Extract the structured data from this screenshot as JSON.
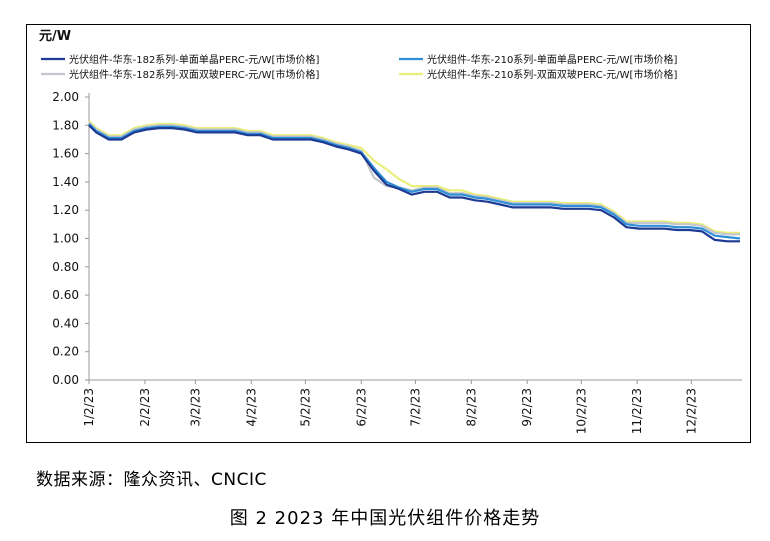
{
  "source_note": "数据来源：隆众资讯、CNCIC",
  "figure_caption": "图 2  2023 年中国光伏组件价格走势",
  "chart_data": {
    "type": "line",
    "title": "",
    "ylabel": "元/W",
    "xlabel": "",
    "ylim": [
      0,
      2
    ],
    "y_ticks": [
      "0.00",
      "0.20",
      "0.40",
      "0.60",
      "0.80",
      "1.00",
      "1.20",
      "1.40",
      "1.60",
      "1.80",
      "2.00"
    ],
    "x_tick_labels": [
      "1/2/23",
      "2/2/23",
      "3/2/23",
      "4/2/23",
      "5/2/23",
      "6/2/23",
      "7/2/23",
      "8/2/23",
      "9/2/23",
      "10/2/23",
      "11/2/23",
      "12/2/23"
    ],
    "grid": false,
    "legend_position": "top",
    "x": [
      "2023-01-02",
      "2023-01-06",
      "2023-01-13",
      "2023-01-20",
      "2023-01-27",
      "2023-02-03",
      "2023-02-10",
      "2023-02-17",
      "2023-02-24",
      "2023-03-03",
      "2023-03-10",
      "2023-03-17",
      "2023-03-24",
      "2023-03-31",
      "2023-04-07",
      "2023-04-14",
      "2023-04-21",
      "2023-04-28",
      "2023-05-05",
      "2023-05-12",
      "2023-05-19",
      "2023-05-26",
      "2023-06-02",
      "2023-06-09",
      "2023-06-16",
      "2023-06-23",
      "2023-06-30",
      "2023-07-07",
      "2023-07-14",
      "2023-07-21",
      "2023-07-28",
      "2023-08-04",
      "2023-08-11",
      "2023-08-18",
      "2023-08-25",
      "2023-09-01",
      "2023-09-08",
      "2023-09-15",
      "2023-09-22",
      "2023-09-29",
      "2023-10-06",
      "2023-10-13",
      "2023-10-20",
      "2023-10-27",
      "2023-11-03",
      "2023-11-10",
      "2023-11-17",
      "2023-11-24",
      "2023-12-01",
      "2023-12-08",
      "2023-12-15",
      "2023-12-22",
      "2023-12-29"
    ],
    "series": [
      {
        "name": "光伏组件-华东-182系列-单面单晶PERC-元/W[市场价格]",
        "color": "#1f3a93",
        "values": [
          1.8,
          1.75,
          1.7,
          1.7,
          1.75,
          1.77,
          1.78,
          1.78,
          1.77,
          1.75,
          1.75,
          1.75,
          1.75,
          1.73,
          1.73,
          1.7,
          1.7,
          1.7,
          1.7,
          1.68,
          1.65,
          1.63,
          1.6,
          1.48,
          1.38,
          1.35,
          1.31,
          1.33,
          1.33,
          1.29,
          1.29,
          1.27,
          1.26,
          1.24,
          1.22,
          1.22,
          1.22,
          1.22,
          1.21,
          1.21,
          1.21,
          1.2,
          1.15,
          1.08,
          1.07,
          1.07,
          1.07,
          1.06,
          1.06,
          1.05,
          0.99,
          0.98,
          0.98
        ]
      },
      {
        "name": "光伏组件-华东-210系列-单面单晶PERC-元/W[市场价格]",
        "color": "#2e8fd6",
        "values": [
          1.81,
          1.76,
          1.71,
          1.71,
          1.76,
          1.78,
          1.79,
          1.79,
          1.78,
          1.76,
          1.76,
          1.76,
          1.76,
          1.74,
          1.74,
          1.71,
          1.71,
          1.71,
          1.71,
          1.69,
          1.66,
          1.64,
          1.61,
          1.5,
          1.4,
          1.36,
          1.33,
          1.35,
          1.35,
          1.31,
          1.31,
          1.29,
          1.28,
          1.26,
          1.24,
          1.24,
          1.24,
          1.24,
          1.23,
          1.23,
          1.23,
          1.22,
          1.17,
          1.1,
          1.09,
          1.09,
          1.09,
          1.08,
          1.08,
          1.07,
          1.02,
          1.01,
          1.0
        ]
      },
      {
        "name": "光伏组件-华东-182系列-双面双玻PERC-元/W[市场价格]",
        "color": "#c3c6cc",
        "values": [
          1.82,
          1.77,
          1.72,
          1.72,
          1.77,
          1.79,
          1.8,
          1.8,
          1.79,
          1.77,
          1.77,
          1.77,
          1.77,
          1.75,
          1.75,
          1.72,
          1.72,
          1.72,
          1.72,
          1.7,
          1.67,
          1.65,
          1.62,
          1.43,
          1.37,
          1.36,
          1.34,
          1.36,
          1.36,
          1.32,
          1.32,
          1.3,
          1.29,
          1.27,
          1.25,
          1.25,
          1.25,
          1.25,
          1.24,
          1.24,
          1.24,
          1.23,
          1.18,
          1.11,
          1.11,
          1.11,
          1.11,
          1.1,
          1.1,
          1.09,
          1.04,
          1.03,
          1.03
        ]
      },
      {
        "name": "光伏组件-华东-210系列-双面双玻PERC-元/W[市场价格]",
        "color": "#e9ef7a",
        "values": [
          1.83,
          1.78,
          1.73,
          1.73,
          1.78,
          1.8,
          1.81,
          1.81,
          1.8,
          1.78,
          1.78,
          1.78,
          1.78,
          1.76,
          1.76,
          1.73,
          1.73,
          1.73,
          1.73,
          1.71,
          1.68,
          1.66,
          1.64,
          1.55,
          1.49,
          1.42,
          1.37,
          1.37,
          1.37,
          1.34,
          1.34,
          1.31,
          1.3,
          1.28,
          1.26,
          1.26,
          1.26,
          1.26,
          1.25,
          1.25,
          1.25,
          1.24,
          1.19,
          1.12,
          1.12,
          1.12,
          1.12,
          1.11,
          1.11,
          1.1,
          1.05,
          1.04,
          1.04
        ]
      }
    ]
  }
}
